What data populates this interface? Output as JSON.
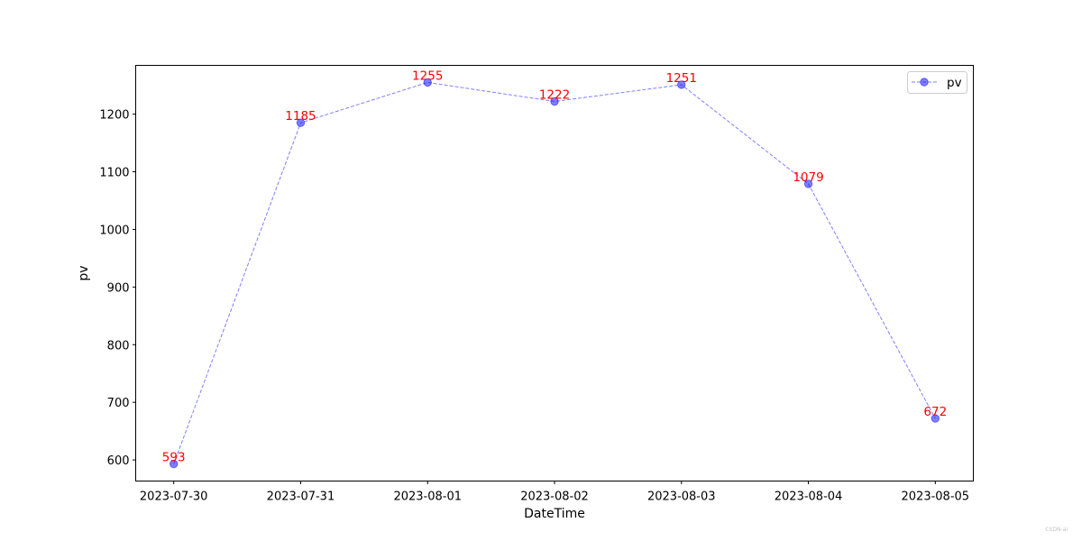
{
  "chart_data": {
    "type": "line",
    "xlabel": "DateTime",
    "ylabel": "pv",
    "categories": [
      "2023-07-30",
      "2023-07-31",
      "2023-08-01",
      "2023-08-02",
      "2023-08-03",
      "2023-08-04",
      "2023-08-05"
    ],
    "series": [
      {
        "name": "pv",
        "values": [
          593,
          1185,
          1255,
          1222,
          1251,
          1079,
          672
        ]
      }
    ],
    "yticks": [
      600,
      700,
      800,
      900,
      1000,
      1100,
      1200
    ],
    "ylim": [
      563.4,
      1284.6
    ],
    "grid": false,
    "legend": "top-right",
    "line_style": "dashed",
    "marker": "circle",
    "colors": {
      "series": "#0000ff",
      "data_labels": "#ff0000",
      "axes": "#000000"
    }
  },
  "watermark": "CSDN-ai"
}
